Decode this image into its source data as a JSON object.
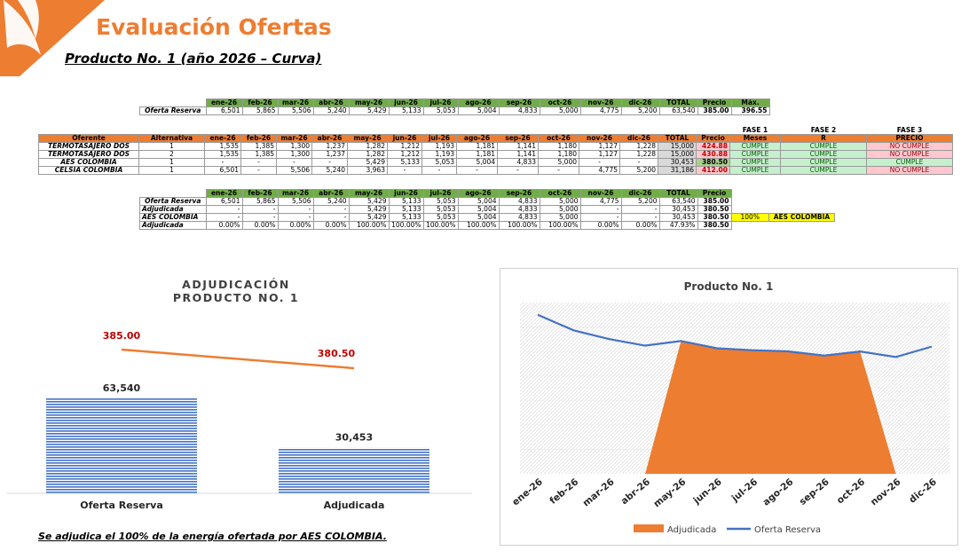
{
  "title": "Evaluación Ofertas",
  "subtitle": "Producto No. 1 (año 2026 – Curva)",
  "colors": {
    "accent": "#ED7D31",
    "green": "#70AD47",
    "blue_line": "#4472C4",
    "bar_blue": "#4472C4"
  },
  "months": [
    "ene-26",
    "feb-26",
    "mar-26",
    "abr-26",
    "may-26",
    "jun-26",
    "jul-26",
    "ago-26",
    "sep-26",
    "oct-26",
    "nov-26",
    "dic-26"
  ],
  "table1": {
    "h_total": "TOTAL",
    "h_precio": "Precio",
    "h_max": "Máx.",
    "row_label": "Oferta Reserva",
    "values": [
      "6,501",
      "5,865",
      "5,506",
      "5,240",
      "5,429",
      "5,133",
      "5,053",
      "5,004",
      "4,833",
      "5,000",
      "4,775",
      "5,200"
    ],
    "total": "63,540",
    "precio": "385.00",
    "max": "396.55"
  },
  "table2": {
    "fase1": "FASE 1",
    "fase2": "FASE 2",
    "fase3": "FASE 3",
    "h_oferente": "Oferente",
    "h_alternativa": "Alternativa",
    "h_total": "TOTAL",
    "h_precio": "Precio",
    "h_meses": "Meses",
    "h_r": "R",
    "h_precio3": "PRECIO",
    "rows": [
      {
        "oferente": "TERMOTASAJERO DOS",
        "alt": "1",
        "values": [
          "1,535",
          "1,385",
          "1,300",
          "1,237",
          "1,282",
          "1,212",
          "1,193",
          "1,181",
          "1,141",
          "1,180",
          "1,127",
          "1,228"
        ],
        "total": "15,000",
        "precio": "424.88",
        "f1": "CUMPLE",
        "f2": "CUMPLE",
        "f3": "NO CUMPLE"
      },
      {
        "oferente": "TERMOTASAJERO DOS",
        "alt": "2",
        "values": [
          "1,535",
          "1,385",
          "1,300",
          "1,237",
          "1,282",
          "1,212",
          "1,193",
          "1,181",
          "1,141",
          "1,180",
          "1,127",
          "1,228"
        ],
        "total": "15,000",
        "precio": "430.88",
        "f1": "CUMPLE",
        "f2": "CUMPLE",
        "f3": "NO CUMPLE"
      },
      {
        "oferente": "AES COLOMBIA",
        "alt": "1",
        "values": [
          "-",
          "-",
          "-",
          "-",
          "5,429",
          "5,133",
          "5,053",
          "5,004",
          "4,833",
          "5,000",
          "-",
          "-"
        ],
        "total": "30,453",
        "precio": "380.50",
        "f1": "CUMPLE",
        "f2": "CUMPLE",
        "f3": "CUMPLE"
      },
      {
        "oferente": "CELSIA COLOMBIA",
        "alt": "1",
        "values": [
          "6,501",
          "-",
          "5,506",
          "5,240",
          "3,963",
          "-",
          "-",
          "-",
          "-",
          "-",
          "4,775",
          "5,200"
        ],
        "total": "31,186",
        "precio": "412.00",
        "f1": "CUMPLE",
        "f2": "CUMPLE",
        "f3": "NO CUMPLE"
      }
    ]
  },
  "table3": {
    "h_total": "TOTAL",
    "h_precio": "Precio",
    "rows": [
      {
        "label": "Oferta Reserva",
        "values": [
          "6,501",
          "5,865",
          "5,506",
          "5,240",
          "5,429",
          "5,133",
          "5,053",
          "5,004",
          "4,833",
          "5,000",
          "4,775",
          "5,200"
        ],
        "total": "63,540",
        "precio": "385.00"
      },
      {
        "label": "Adjudicada",
        "values": [
          "-",
          "-",
          "-",
          "-",
          "5,429",
          "5,133",
          "5,053",
          "5,004",
          "4,833",
          "5,000",
          "-",
          "-"
        ],
        "total": "30,453",
        "precio": "380.50"
      },
      {
        "label": "AES COLOMBIA",
        "values": [
          "-",
          "-",
          "-",
          "-",
          "5,429",
          "5,133",
          "5,053",
          "5,004",
          "4,833",
          "5,000",
          "-",
          "-"
        ],
        "total": "30,453",
        "precio": "380.50",
        "pct": "100%",
        "winner": "AES COLOMBIA"
      },
      {
        "label": "Adjudicada",
        "values": [
          "0.00%",
          "0.00%",
          "0.00%",
          "0.00%",
          "100.00%",
          "100.00%",
          "100.00%",
          "100.00%",
          "100.00%",
          "100.00%",
          "0.00%",
          "0.00%"
        ],
        "total": "47.93%",
        "precio": "380.50"
      }
    ]
  },
  "footnote": "Se adjudica el 100% de la energía ofertada por AES COLOMBIA.",
  "chart_data": [
    {
      "type": "bar",
      "title": "ADJUDICACIÓN",
      "subtitle": "PRODUCTO NO. 1",
      "categories": [
        "Oferta Reserva",
        "Adjudicada"
      ],
      "series": [
        {
          "values": [
            63540,
            30453
          ],
          "labels": [
            "63,540",
            "30,453"
          ]
        },
        {
          "type": "line",
          "values": [
            385.0,
            380.5
          ],
          "labels": [
            "385.00",
            "380.50"
          ]
        }
      ]
    },
    {
      "type": "area",
      "title": "Producto No. 1",
      "categories": [
        "ene-26",
        "feb-26",
        "mar-26",
        "abr-26",
        "may-26",
        "jun-26",
        "jul-26",
        "ago-26",
        "sep-26",
        "oct-26",
        "nov-26",
        "dic-26"
      ],
      "series": [
        {
          "name": "Adjudicada",
          "type": "area",
          "values": [
            0,
            0,
            0,
            0,
            5429,
            5133,
            5053,
            5004,
            4833,
            5000,
            0,
            0
          ]
        },
        {
          "name": "Oferta Reserva",
          "type": "line",
          "values": [
            6501,
            5865,
            5506,
            5240,
            5429,
            5133,
            5053,
            5004,
            4833,
            5000,
            4775,
            5200
          ]
        }
      ],
      "ylim": [
        0,
        7000
      ],
      "legend": "bottom"
    }
  ]
}
